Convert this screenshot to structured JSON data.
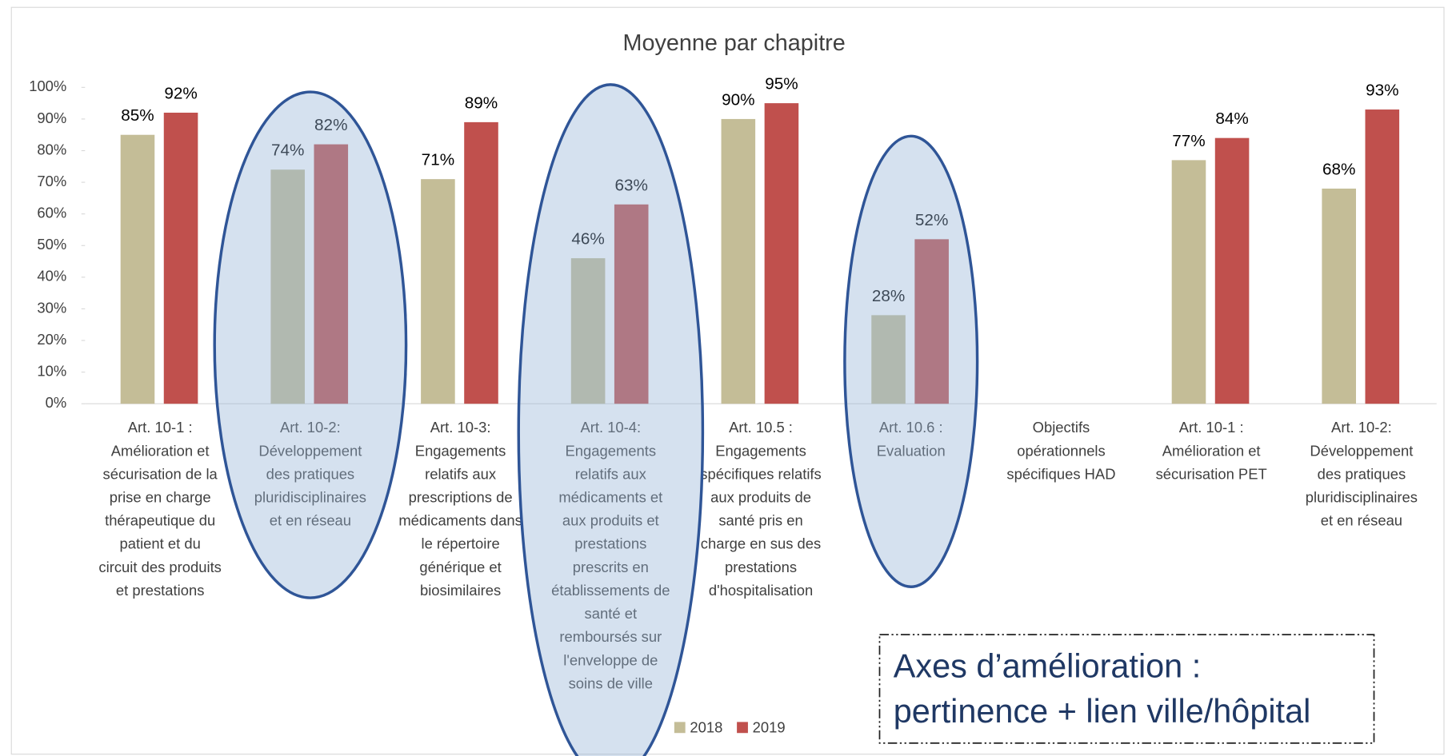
{
  "chart_data": {
    "type": "bar",
    "title": "Moyenne par chapitre",
    "categories": [
      [
        "Art. 10-1 :",
        "Amélioration et",
        "sécurisation de la",
        "prise en charge",
        "thérapeutique du",
        "patient et du",
        "circuit des produits",
        "et prestations"
      ],
      [
        "Art. 10-2:",
        "Développement",
        "des pratiques",
        "pluridisciplinaires",
        "et en réseau"
      ],
      [
        "Art. 10-3:",
        "Engagements",
        "relatifs aux",
        "prescriptions de",
        "médicaments dans",
        "le répertoire",
        "générique et",
        "biosimilaires"
      ],
      [
        "Art. 10-4:",
        "Engagements",
        "relatifs aux",
        "médicaments et",
        "aux produits et",
        "prestations",
        "prescrits en",
        "établissements de",
        "santé et",
        "remboursés sur",
        "l'enveloppe de",
        "soins de ville"
      ],
      [
        "Art. 10.5 :",
        "Engagements",
        "spécifiques relatifs",
        "aux produits de",
        "santé pris en",
        "charge en sus des",
        "prestations",
        "d'hospitalisation"
      ],
      [
        "Art. 10.6 :",
        "Evaluation"
      ],
      [
        "Objectifs",
        "opérationnels",
        "spécifiques HAD"
      ],
      [
        "Art. 10-1 :",
        "Amélioration et",
        "sécurisation PET"
      ],
      [
        "Art. 10-2:",
        "Développement",
        "des pratiques",
        "pluridisciplinaires",
        "et en réseau"
      ]
    ],
    "series": [
      {
        "name": "2018",
        "color": "#c4bd97",
        "values": [
          85,
          74,
          71,
          46,
          90,
          28,
          null,
          77,
          68
        ],
        "value_labels": [
          "85%",
          "74%",
          "71%",
          "46%",
          "90%",
          "28%",
          null,
          "77%",
          "68%"
        ]
      },
      {
        "name": "2019",
        "color": "#c0504d",
        "values": [
          92,
          82,
          89,
          63,
          95,
          52,
          null,
          84,
          93
        ],
        "value_labels": [
          "92%",
          "82%",
          "89%",
          "63%",
          "95%",
          "52%",
          null,
          "84%",
          "93%"
        ]
      }
    ],
    "ylim": [
      0,
      100
    ],
    "yticks": [
      {
        "value": 0,
        "label": "0%"
      },
      {
        "value": 10,
        "label": "10%"
      },
      {
        "value": 20,
        "label": "20%"
      },
      {
        "value": 30,
        "label": "30%"
      },
      {
        "value": 40,
        "label": "40%"
      },
      {
        "value": 50,
        "label": "50%"
      },
      {
        "value": 60,
        "label": "60%"
      },
      {
        "value": 70,
        "label": "70%"
      },
      {
        "value": 80,
        "label": "80%"
      },
      {
        "value": 90,
        "label": "90%"
      },
      {
        "value": 100,
        "label": "100%"
      }
    ],
    "grid": false,
    "legend": "bottom",
    "annotation": [
      "Axes d’amélioration :",
      "pertinence + lien ville/hôpital"
    ]
  }
}
